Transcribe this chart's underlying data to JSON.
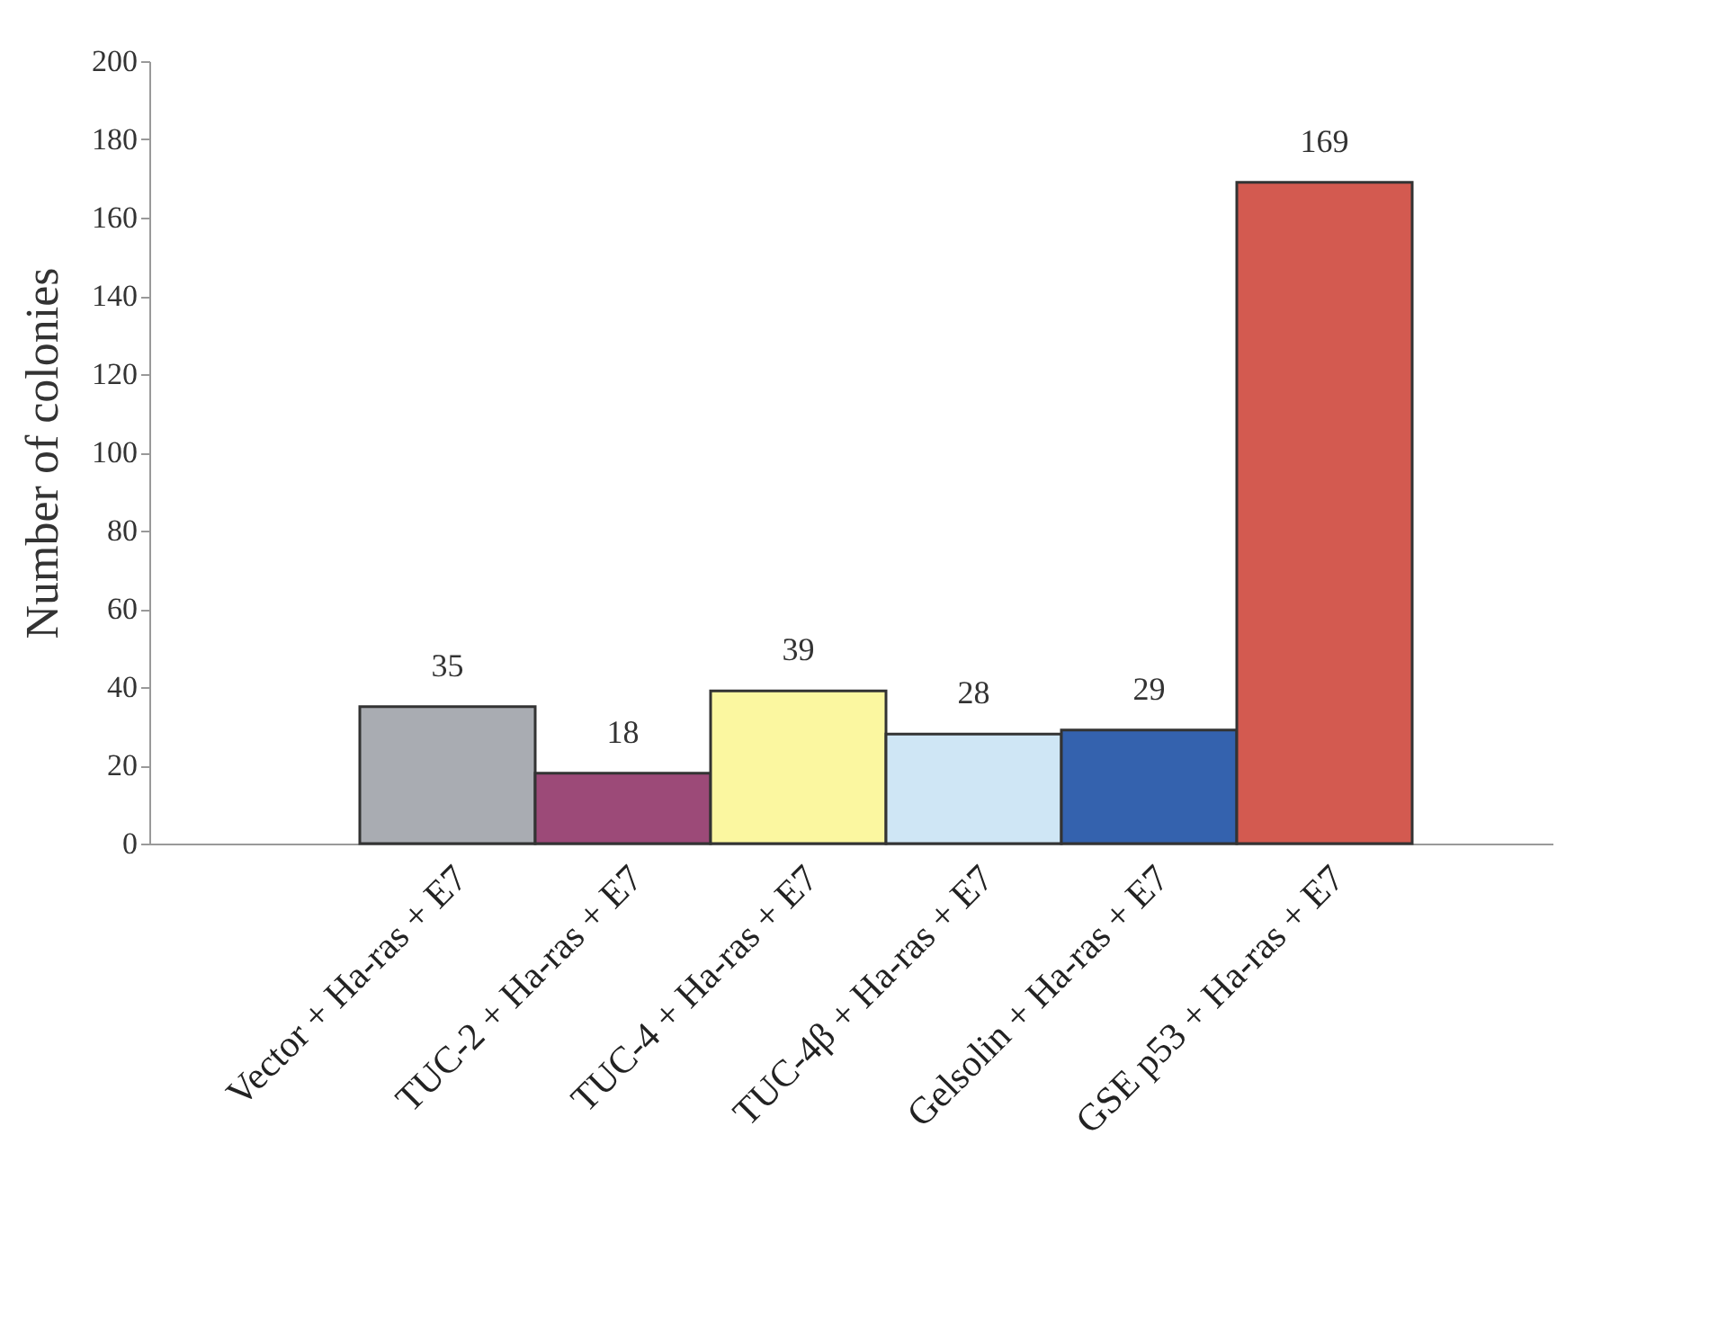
{
  "chart_data": {
    "type": "bar",
    "ylabel": "Number of colonies",
    "categories": [
      "Vector + Ha-ras + E7",
      "TUC-2 + Ha-ras + E7",
      "TUC-4 + Ha-ras + E7",
      "TUC-4β + Ha-ras + E7",
      "Gelsolin + Ha-ras + E7",
      "GSE p53 + Ha-ras + E7"
    ],
    "values": [
      35,
      18,
      39,
      28,
      29,
      169
    ],
    "colors": [
      "#a9acb2",
      "#9c4a78",
      "#fbf7a0",
      "#cfe6f5",
      "#3462ae",
      "#d35a50"
    ],
    "ylim": [
      0,
      200
    ],
    "yticks": [
      0,
      20,
      40,
      60,
      80,
      100,
      120,
      140,
      160,
      180,
      200
    ],
    "data_labels": true,
    "grid": false,
    "legend": false
  }
}
